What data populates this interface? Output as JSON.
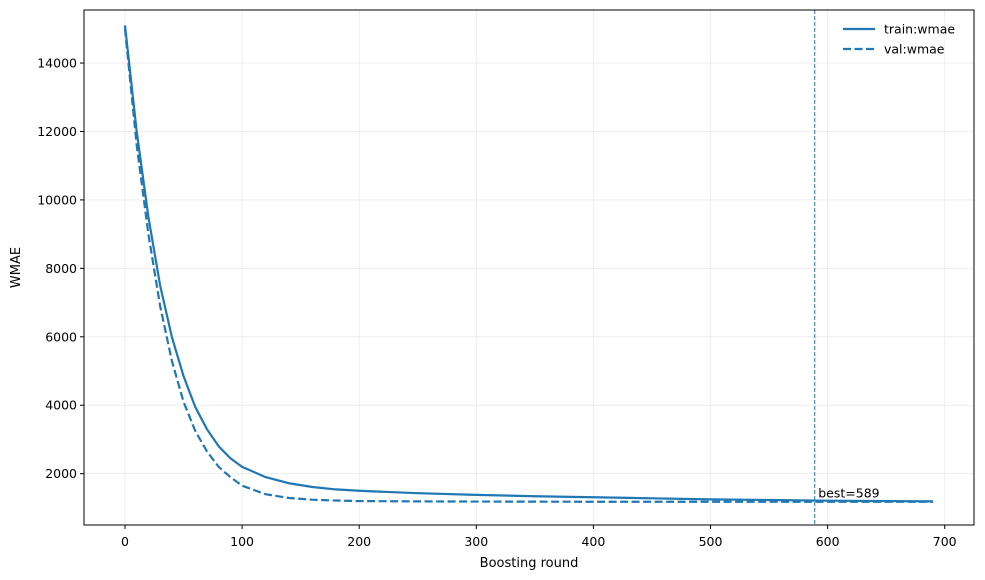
{
  "chart_data": {
    "type": "line",
    "xlabel": "Boosting round",
    "ylabel": "WMAE",
    "xlim": [
      -35,
      725
    ],
    "ylim": [
      500,
      15550
    ],
    "xticks": [
      0,
      100,
      200,
      300,
      400,
      500,
      600,
      700
    ],
    "yticks": [
      2000,
      4000,
      6000,
      8000,
      10000,
      12000,
      14000
    ],
    "grid": true,
    "legend_position": "top-right",
    "series": [
      {
        "name": "train:wmae",
        "style": "solid",
        "color": "#1f77b4",
        "x": [
          0,
          10,
          20,
          30,
          40,
          50,
          60,
          70,
          80,
          90,
          100,
          120,
          140,
          160,
          180,
          200,
          250,
          300,
          350,
          400,
          450,
          500,
          550,
          600,
          650,
          690
        ],
        "y": [
          15100,
          12000,
          9500,
          7500,
          6000,
          4850,
          3950,
          3300,
          2800,
          2450,
          2200,
          1900,
          1720,
          1610,
          1540,
          1500,
          1430,
          1380,
          1340,
          1310,
          1280,
          1250,
          1230,
          1210,
          1200,
          1190
        ]
      },
      {
        "name": "val:wmae",
        "style": "dashed",
        "color": "#1f77b4",
        "x": [
          0,
          10,
          20,
          30,
          40,
          50,
          60,
          70,
          80,
          90,
          100,
          120,
          140,
          160,
          180,
          200,
          250,
          300,
          400,
          500,
          589,
          690
        ],
        "y": [
          15000,
          11600,
          9000,
          6900,
          5300,
          4100,
          3250,
          2650,
          2200,
          1900,
          1650,
          1400,
          1290,
          1240,
          1215,
          1200,
          1190,
          1185,
          1180,
          1180,
          1180,
          1180
        ]
      }
    ],
    "annotations": [
      {
        "type": "vline",
        "x": 589,
        "style": "dashed",
        "color": "#1f77b4"
      },
      {
        "type": "text",
        "text": "best=589",
        "x": 592,
        "y": 1300
      }
    ]
  }
}
